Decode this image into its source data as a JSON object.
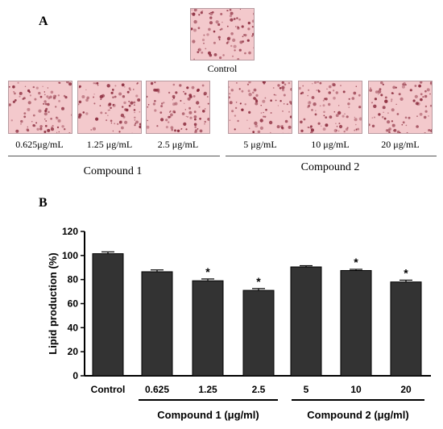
{
  "panel_a": {
    "letter": "A",
    "images": [
      {
        "label": "Control",
        "seed": 11
      },
      {
        "label": "0.625μg/mL",
        "seed": 23
      },
      {
        "label": "1.25 μg/mL",
        "seed": 37
      },
      {
        "label": "2.5 μg/mL",
        "seed": 41
      },
      {
        "label": "5 μg/mL",
        "seed": 53
      },
      {
        "label": "10 μg/mL",
        "seed": 67
      },
      {
        "label": "20 μg/mL",
        "seed": 79
      }
    ],
    "groups": [
      "Compound 1",
      "Compound 2"
    ]
  },
  "panel_b": {
    "letter": "B"
  },
  "colors": {
    "bar": "#333333",
    "tissue": "#f3c9cc",
    "cell": "#8a2a3c"
  },
  "chart_data": {
    "type": "bar",
    "categories": [
      "Control",
      "0.625",
      "1.25",
      "2.5",
      "5",
      "10",
      "20"
    ],
    "values": [
      101.5,
      86.5,
      79,
      71,
      90.5,
      87.5,
      78
    ],
    "errors": [
      1.5,
      1.5,
      1.5,
      1.5,
      1,
      1,
      1.5
    ],
    "significant": [
      false,
      false,
      true,
      true,
      false,
      true,
      true
    ],
    "significance_marker": "*",
    "ylabel": "Lipid production (%)",
    "ylim": [
      0,
      120
    ],
    "yticks": [
      0,
      20,
      40,
      60,
      80,
      100,
      120
    ],
    "groups": [
      {
        "label": "Compound 1 (μg/ml)",
        "categories": [
          "0.625",
          "1.25",
          "2.5"
        ]
      },
      {
        "label": "Compound 2 (μg/ml)",
        "categories": [
          "5",
          "10",
          "20"
        ]
      }
    ]
  }
}
